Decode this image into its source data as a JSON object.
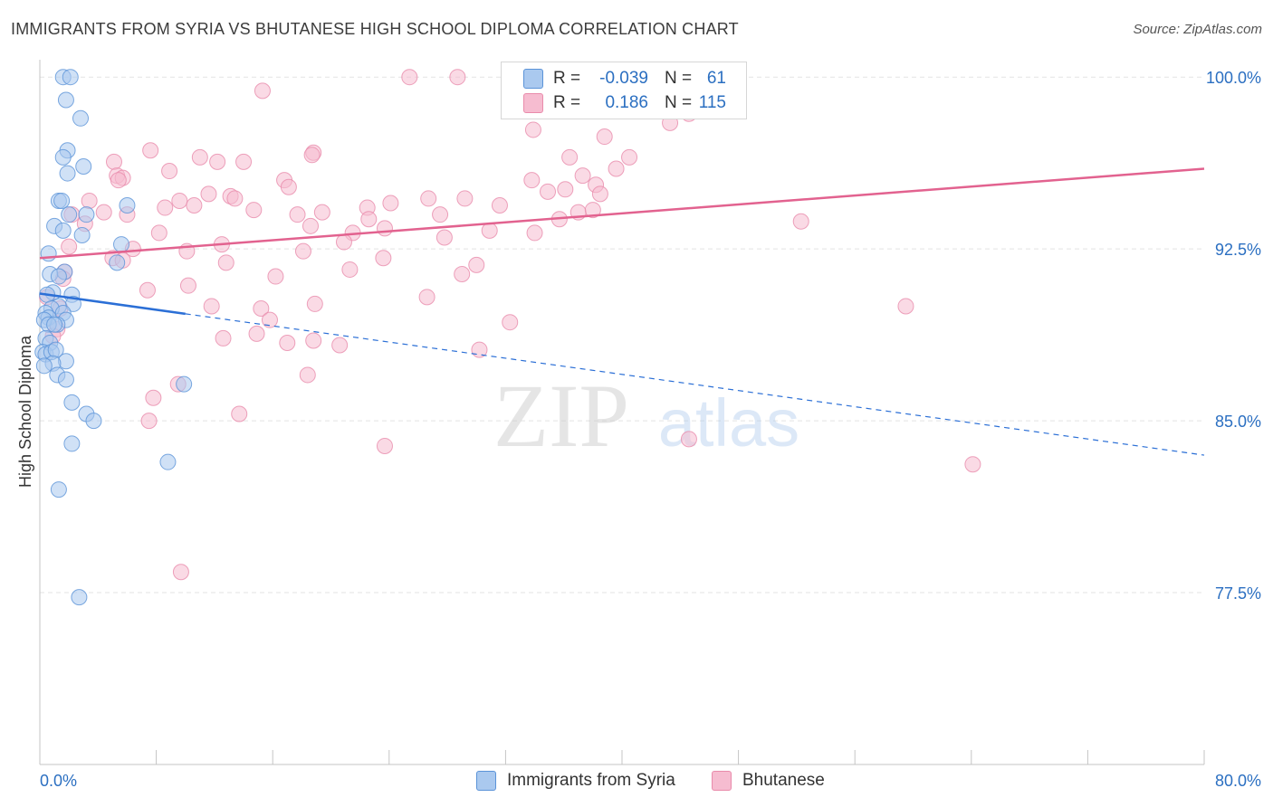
{
  "header": {
    "title": "IMMIGRANTS FROM SYRIA VS BHUTANESE HIGH SCHOOL DIPLOMA CORRELATION CHART",
    "source": "Source: ZipAtlas.com"
  },
  "watermark": {
    "zip": "ZIP",
    "atlas": "atlas"
  },
  "colors": {
    "syria_fill": "#aac9ef",
    "syria_stroke": "#5b93d8",
    "syria_line": "#2b6fd6",
    "bhutan_fill": "#f6bcd0",
    "bhutan_stroke": "#e98bab",
    "bhutan_line": "#e2628f",
    "value_text": "#2b6fc1",
    "grid": "#e3e3e3"
  },
  "stats_legend": {
    "rows": [
      {
        "series": "Immigrants from Syria",
        "r_label": "R =",
        "r_value": "-0.039",
        "n_label": "N =",
        "n_value": "61"
      },
      {
        "series": "Bhutanese",
        "r_label": "R =",
        "r_value": "0.186",
        "n_label": "N =",
        "n_value": "115"
      }
    ]
  },
  "chart_data": {
    "type": "scatter",
    "title": "IMMIGRANTS FROM SYRIA VS BHUTANESE HIGH SCHOOL DIPLOMA CORRELATION CHART",
    "xlabel": "",
    "ylabel": "High School Diploma",
    "xlim": [
      0,
      80
    ],
    "ylim": [
      70.0,
      100.6
    ],
    "x_tick_labels": [
      {
        "value": 0,
        "label": "0.0%"
      },
      {
        "value": 80,
        "label": "80.0%"
      }
    ],
    "y_tick_labels": [
      {
        "value": 77.5,
        "label": "77.5%"
      },
      {
        "value": 85.0,
        "label": "85.0%"
      },
      {
        "value": 92.5,
        "label": "92.5%"
      },
      {
        "value": 100.0,
        "label": "100.0%"
      }
    ],
    "legend": [
      "Immigrants from Syria",
      "Bhutanese"
    ],
    "series": [
      {
        "name": "Immigrants from Syria",
        "trend": {
          "x_start": 0,
          "y_start": 90.55,
          "x_solid_end": 10,
          "x_end": 80,
          "y_end": 83.5
        },
        "points": [
          [
            1.6,
            100.0
          ],
          [
            2.1,
            100.0
          ],
          [
            1.8,
            99.0
          ],
          [
            2.8,
            98.2
          ],
          [
            1.9,
            96.8
          ],
          [
            1.6,
            96.5
          ],
          [
            3.0,
            96.1
          ],
          [
            1.9,
            95.8
          ],
          [
            1.3,
            94.6
          ],
          [
            1.5,
            94.6
          ],
          [
            6.0,
            94.4
          ],
          [
            3.2,
            94.0
          ],
          [
            2.0,
            94.0
          ],
          [
            1.0,
            93.5
          ],
          [
            1.6,
            93.3
          ],
          [
            2.9,
            93.1
          ],
          [
            5.6,
            92.7
          ],
          [
            0.6,
            92.3
          ],
          [
            5.3,
            91.9
          ],
          [
            1.7,
            91.5
          ],
          [
            0.7,
            91.4
          ],
          [
            1.3,
            91.3
          ],
          [
            0.9,
            90.6
          ],
          [
            2.2,
            90.5
          ],
          [
            0.5,
            90.5
          ],
          [
            2.3,
            90.1
          ],
          [
            1.3,
            90.0
          ],
          [
            0.8,
            89.9
          ],
          [
            0.4,
            89.7
          ],
          [
            1.6,
            89.7
          ],
          [
            0.6,
            89.5
          ],
          [
            1.8,
            89.4
          ],
          [
            1.2,
            89.2
          ],
          [
            0.3,
            89.4
          ],
          [
            0.6,
            89.2
          ],
          [
            1.0,
            89.2
          ],
          [
            0.4,
            88.6
          ],
          [
            0.7,
            88.4
          ],
          [
            0.2,
            88.0
          ],
          [
            0.4,
            87.9
          ],
          [
            0.8,
            88.0
          ],
          [
            1.1,
            88.1
          ],
          [
            1.8,
            87.6
          ],
          [
            0.9,
            87.5
          ],
          [
            0.3,
            87.4
          ],
          [
            1.2,
            87.0
          ],
          [
            1.8,
            86.8
          ],
          [
            9.9,
            86.6
          ],
          [
            2.2,
            85.8
          ],
          [
            3.2,
            85.3
          ],
          [
            3.7,
            85.0
          ],
          [
            2.2,
            84.0
          ],
          [
            8.8,
            83.2
          ],
          [
            1.3,
            82.0
          ],
          [
            2.7,
            77.3
          ]
        ]
      },
      {
        "name": "Bhutanese",
        "trend": {
          "x_start": 0,
          "y_start": 92.1,
          "x_end": 80,
          "y_end": 96.0
        },
        "points": [
          [
            25.4,
            100.0
          ],
          [
            28.7,
            100.0
          ],
          [
            43.6,
            100.0
          ],
          [
            15.3,
            99.4
          ],
          [
            44.6,
            98.4
          ],
          [
            43.3,
            98.0
          ],
          [
            33.9,
            97.7
          ],
          [
            38.8,
            97.4
          ],
          [
            7.6,
            96.8
          ],
          [
            18.8,
            96.7
          ],
          [
            18.7,
            96.6
          ],
          [
            36.4,
            96.5
          ],
          [
            40.5,
            96.5
          ],
          [
            11.0,
            96.5
          ],
          [
            12.2,
            96.3
          ],
          [
            14.0,
            96.3
          ],
          [
            5.1,
            96.3
          ],
          [
            39.6,
            96.0
          ],
          [
            8.9,
            95.9
          ],
          [
            5.3,
            95.7
          ],
          [
            5.7,
            95.6
          ],
          [
            37.3,
            95.7
          ],
          [
            33.8,
            95.5
          ],
          [
            16.8,
            95.5
          ],
          [
            5.4,
            95.5
          ],
          [
            38.2,
            95.3
          ],
          [
            17.1,
            95.2
          ],
          [
            36.1,
            95.1
          ],
          [
            34.9,
            95.0
          ],
          [
            38.5,
            94.9
          ],
          [
            11.6,
            94.9
          ],
          [
            13.1,
            94.8
          ],
          [
            13.4,
            94.7
          ],
          [
            26.7,
            94.7
          ],
          [
            29.2,
            94.7
          ],
          [
            9.6,
            94.6
          ],
          [
            3.4,
            94.6
          ],
          [
            24.1,
            94.5
          ],
          [
            31.6,
            94.4
          ],
          [
            10.6,
            94.4
          ],
          [
            8.6,
            94.3
          ],
          [
            22.5,
            94.3
          ],
          [
            14.7,
            94.2
          ],
          [
            19.4,
            94.1
          ],
          [
            4.4,
            94.1
          ],
          [
            27.5,
            94.0
          ],
          [
            37.0,
            94.1
          ],
          [
            38.0,
            94.2
          ],
          [
            6.0,
            94.0
          ],
          [
            17.7,
            94.0
          ],
          [
            2.2,
            94.0
          ],
          [
            22.6,
            93.8
          ],
          [
            35.7,
            93.8
          ],
          [
            52.3,
            93.7
          ],
          [
            3.1,
            93.6
          ],
          [
            18.6,
            93.5
          ],
          [
            23.7,
            93.4
          ],
          [
            8.2,
            93.2
          ],
          [
            30.9,
            93.3
          ],
          [
            21.5,
            93.2
          ],
          [
            34.0,
            93.2
          ],
          [
            27.8,
            93.0
          ],
          [
            20.9,
            92.8
          ],
          [
            12.5,
            92.7
          ],
          [
            2.0,
            92.6
          ],
          [
            6.4,
            92.5
          ],
          [
            10.1,
            92.4
          ],
          [
            18.1,
            92.4
          ],
          [
            23.6,
            92.1
          ],
          [
            5.0,
            92.1
          ],
          [
            5.7,
            92.0
          ],
          [
            12.8,
            91.9
          ],
          [
            30.0,
            91.8
          ],
          [
            21.3,
            91.6
          ],
          [
            29.0,
            91.4
          ],
          [
            1.7,
            91.5
          ],
          [
            16.2,
            91.3
          ],
          [
            1.6,
            91.2
          ],
          [
            10.2,
            90.9
          ],
          [
            7.4,
            90.7
          ],
          [
            26.6,
            90.4
          ],
          [
            18.9,
            90.1
          ],
          [
            11.8,
            90.0
          ],
          [
            59.5,
            90.0
          ],
          [
            15.2,
            89.9
          ],
          [
            15.8,
            89.4
          ],
          [
            32.3,
            89.3
          ],
          [
            1.2,
            89.0
          ],
          [
            12.6,
            88.6
          ],
          [
            14.9,
            88.8
          ],
          [
            17.0,
            88.4
          ],
          [
            18.8,
            88.5
          ],
          [
            20.6,
            88.3
          ],
          [
            30.2,
            88.1
          ],
          [
            18.4,
            87.0
          ],
          [
            9.5,
            86.6
          ],
          [
            7.8,
            86.0
          ],
          [
            13.7,
            85.3
          ],
          [
            7.5,
            85.0
          ],
          [
            23.7,
            83.9
          ],
          [
            44.6,
            84.2
          ],
          [
            64.1,
            83.1
          ],
          [
            9.7,
            78.4
          ],
          [
            0.5,
            90.4
          ],
          [
            0.9,
            88.7
          ],
          [
            1.4,
            89.9
          ]
        ]
      }
    ]
  },
  "bottom_legend": {
    "items": [
      "Immigrants from Syria",
      "Bhutanese"
    ]
  }
}
